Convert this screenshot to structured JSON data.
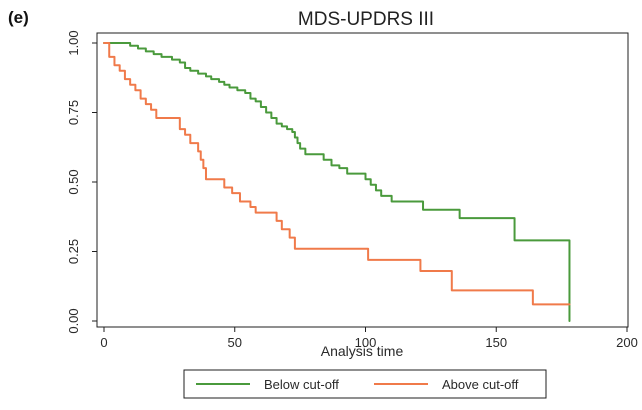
{
  "figure": {
    "panel_label": "(e)"
  },
  "chart_data": {
    "type": "line",
    "subtype": "kaplan-meier",
    "title": "MDS-UPDRS III",
    "xlabel": "Analysis time",
    "ylabel": "",
    "xlim": [
      0,
      200
    ],
    "ylim": [
      0,
      1
    ],
    "x_ticks": [
      0,
      50,
      100,
      150,
      200
    ],
    "x_tick_labels": [
      "0",
      "50",
      "100",
      "150",
      "200"
    ],
    "y_ticks": [
      0,
      0.25,
      0.5,
      0.75,
      1
    ],
    "y_tick_labels": [
      "0.00",
      "0.25",
      "0.50",
      "0.75",
      "1.00"
    ],
    "grid": false,
    "legend_position": "bottom",
    "series": [
      {
        "name": "Below cut-off",
        "color": "#4a9a3c",
        "points": [
          [
            0,
            1.0
          ],
          [
            6,
            1.0
          ],
          [
            10,
            0.99
          ],
          [
            13,
            0.98
          ],
          [
            16,
            0.97
          ],
          [
            19,
            0.96
          ],
          [
            22,
            0.95
          ],
          [
            26,
            0.94
          ],
          [
            29,
            0.93
          ],
          [
            31,
            0.91
          ],
          [
            33,
            0.9
          ],
          [
            36,
            0.89
          ],
          [
            39,
            0.88
          ],
          [
            41,
            0.87
          ],
          [
            44,
            0.86
          ],
          [
            46,
            0.85
          ],
          [
            48,
            0.84
          ],
          [
            51,
            0.83
          ],
          [
            54,
            0.82
          ],
          [
            56,
            0.8
          ],
          [
            58,
            0.79
          ],
          [
            60,
            0.77
          ],
          [
            62,
            0.75
          ],
          [
            64,
            0.73
          ],
          [
            66,
            0.71
          ],
          [
            68,
            0.7
          ],
          [
            70,
            0.69
          ],
          [
            72,
            0.68
          ],
          [
            73,
            0.66
          ],
          [
            74,
            0.64
          ],
          [
            75,
            0.62
          ],
          [
            77,
            0.6
          ],
          [
            80,
            0.6
          ],
          [
            84,
            0.58
          ],
          [
            87,
            0.56
          ],
          [
            90,
            0.55
          ],
          [
            93,
            0.53
          ],
          [
            97,
            0.53
          ],
          [
            100,
            0.51
          ],
          [
            102,
            0.49
          ],
          [
            104,
            0.47
          ],
          [
            106,
            0.45
          ],
          [
            110,
            0.43
          ],
          [
            118,
            0.43
          ],
          [
            122,
            0.4
          ],
          [
            133,
            0.4
          ],
          [
            136,
            0.37
          ],
          [
            155,
            0.37
          ],
          [
            157,
            0.29
          ],
          [
            178,
            0.29
          ],
          [
            178,
            0.0
          ]
        ]
      },
      {
        "name": "Above cut-off",
        "color": "#f07a4a",
        "points": [
          [
            0,
            1.0
          ],
          [
            1,
            1.0
          ],
          [
            2,
            0.95
          ],
          [
            4,
            0.92
          ],
          [
            6,
            0.9
          ],
          [
            8,
            0.87
          ],
          [
            10,
            0.85
          ],
          [
            12,
            0.83
          ],
          [
            14,
            0.8
          ],
          [
            16,
            0.78
          ],
          [
            18,
            0.76
          ],
          [
            20,
            0.73
          ],
          [
            26,
            0.73
          ],
          [
            29,
            0.69
          ],
          [
            31,
            0.67
          ],
          [
            33,
            0.64
          ],
          [
            36,
            0.61
          ],
          [
            37,
            0.58
          ],
          [
            38,
            0.55
          ],
          [
            39,
            0.51
          ],
          [
            44,
            0.51
          ],
          [
            46,
            0.48
          ],
          [
            49,
            0.46
          ],
          [
            52,
            0.43
          ],
          [
            56,
            0.41
          ],
          [
            58,
            0.39
          ],
          [
            63,
            0.39
          ],
          [
            66,
            0.36
          ],
          [
            68,
            0.33
          ],
          [
            70,
            0.33
          ],
          [
            71,
            0.3
          ],
          [
            73,
            0.26
          ],
          [
            100,
            0.26
          ],
          [
            101,
            0.22
          ],
          [
            120,
            0.22
          ],
          [
            121,
            0.18
          ],
          [
            132,
            0.18
          ],
          [
            133,
            0.11
          ],
          [
            162,
            0.11
          ],
          [
            164,
            0.06
          ],
          [
            178,
            0.06
          ]
        ]
      }
    ]
  }
}
